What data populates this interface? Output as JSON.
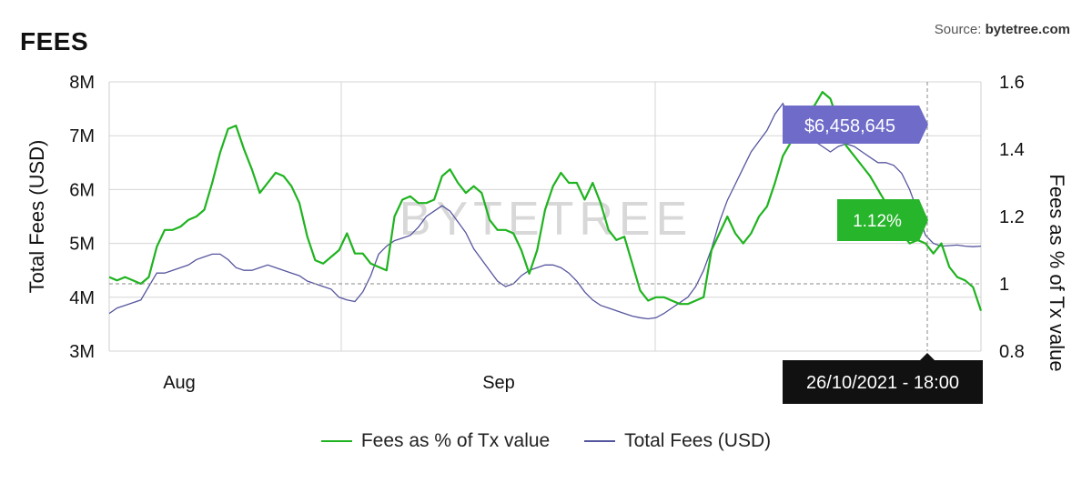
{
  "header": {
    "title": "FEES",
    "source_label": "Source:",
    "source_name": "bytetree.com"
  },
  "watermark": "BYTETREE",
  "colors": {
    "fees_pct": "#1fb31f",
    "total_fees": "#55559e",
    "tooltip_usd": "#6f6bc9",
    "tooltip_pct": "#27b52b",
    "tooltip_date": "#111111"
  },
  "tooltips": {
    "usd": "$6,458,645",
    "pct": "1.12%",
    "date": "26/10/2021 - 18:00"
  },
  "legend": {
    "fees_pct": "Fees as % of Tx value",
    "total_fees": "Total Fees (USD)"
  },
  "chart_data": {
    "type": "line",
    "title": "FEES",
    "x_ticks": [
      "Aug",
      "Sep"
    ],
    "y_left": {
      "label": "Total Fees (USD)",
      "ticks": [
        "3M",
        "4M",
        "5M",
        "6M",
        "7M",
        "8M"
      ],
      "range": [
        3000000,
        8000000
      ]
    },
    "y_right": {
      "label": "Fees as % of Tx value",
      "ticks": [
        "0.8",
        "1",
        "1.2",
        "1.4",
        "1.6"
      ],
      "range": [
        0.8,
        1.6
      ]
    },
    "crosshair": {
      "date": "26/10/2021 - 18:00",
      "total_fees_usd": 6458645,
      "fees_pct": 1.12
    },
    "series": [
      {
        "name": "Fees as % of Tx value",
        "axis": "right",
        "values": [
          1.02,
          1.01,
          1.02,
          1.01,
          1.0,
          1.02,
          1.11,
          1.16,
          1.16,
          1.17,
          1.19,
          1.2,
          1.22,
          1.3,
          1.39,
          1.46,
          1.47,
          1.4,
          1.34,
          1.27,
          1.3,
          1.33,
          1.32,
          1.29,
          1.24,
          1.14,
          1.07,
          1.06,
          1.08,
          1.1,
          1.15,
          1.09,
          1.09,
          1.06,
          1.05,
          1.04,
          1.2,
          1.25,
          1.26,
          1.24,
          1.24,
          1.25,
          1.32,
          1.34,
          1.3,
          1.27,
          1.29,
          1.27,
          1.19,
          1.16,
          1.16,
          1.15,
          1.1,
          1.03,
          1.1,
          1.22,
          1.29,
          1.33,
          1.3,
          1.3,
          1.25,
          1.3,
          1.24,
          1.16,
          1.13,
          1.14,
          1.06,
          0.98,
          0.95,
          0.96,
          0.96,
          0.95,
          0.94,
          0.94,
          0.95,
          0.96,
          1.1,
          1.15,
          1.2,
          1.15,
          1.12,
          1.15,
          1.2,
          1.23,
          1.3,
          1.38,
          1.42,
          1.47,
          1.51,
          1.53,
          1.57,
          1.55,
          1.48,
          1.41,
          1.38,
          1.35,
          1.32,
          1.28,
          1.24,
          1.18,
          1.15,
          1.12,
          1.13,
          1.12,
          1.09,
          1.12,
          1.05,
          1.02,
          1.01,
          0.99,
          0.92
        ]
      },
      {
        "name": "Total Fees (USD)",
        "axis": "left",
        "values": [
          3700000,
          3800000,
          3850000,
          3900000,
          3950000,
          4200000,
          4450000,
          4450000,
          4500000,
          4550000,
          4600000,
          4700000,
          4750000,
          4800000,
          4800000,
          4700000,
          4550000,
          4500000,
          4500000,
          4550000,
          4600000,
          4550000,
          4500000,
          4450000,
          4400000,
          4300000,
          4250000,
          4200000,
          4150000,
          4000000,
          3950000,
          3920000,
          4100000,
          4400000,
          4800000,
          4950000,
          5050000,
          5100000,
          5150000,
          5300000,
          5500000,
          5600000,
          5700000,
          5600000,
          5400000,
          5200000,
          4900000,
          4700000,
          4500000,
          4300000,
          4200000,
          4250000,
          4400000,
          4500000,
          4550000,
          4600000,
          4600000,
          4550000,
          4450000,
          4300000,
          4100000,
          3950000,
          3850000,
          3800000,
          3750000,
          3700000,
          3650000,
          3620000,
          3600000,
          3620000,
          3700000,
          3800000,
          3900000,
          4000000,
          4200000,
          4500000,
          4900000,
          5400000,
          5800000,
          6100000,
          6400000,
          6700000,
          6900000,
          7100000,
          7400000,
          7600000,
          7300000,
          7050000,
          6950000,
          6900000,
          6800000,
          6700000,
          6800000,
          6850000,
          6800000,
          6700000,
          6600000,
          6500000,
          6500000,
          6450000,
          6300000,
          6000000,
          5600000,
          5150000,
          5000000,
          4950000,
          4960000,
          4970000,
          4950000,
          4940000,
          4950000
        ]
      }
    ]
  }
}
